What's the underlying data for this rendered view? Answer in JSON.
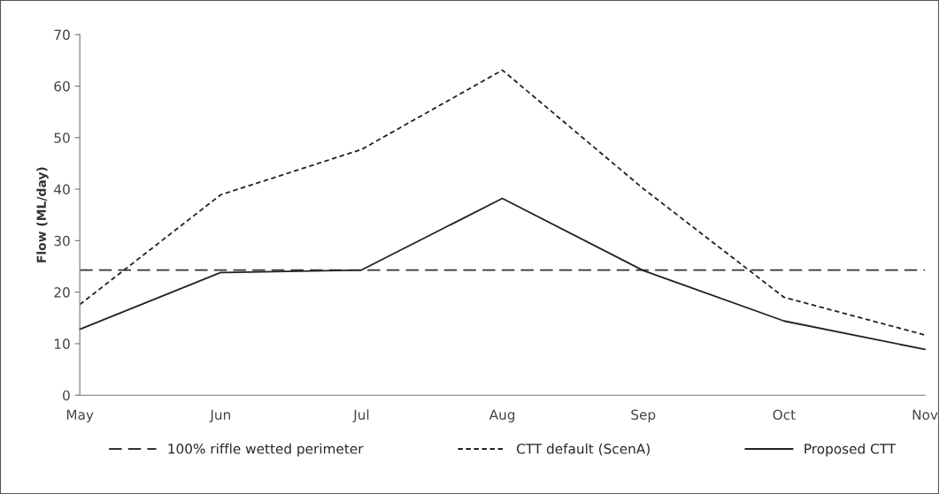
{
  "chart_data": {
    "type": "line",
    "ylabel": "Flow (ML/day)",
    "categories": [
      "May",
      "Jun",
      "Jul",
      "Aug",
      "Sep",
      "Oct",
      "Nov"
    ],
    "series": [
      {
        "name": "100% riffle wetted perimeter",
        "color": "#333333",
        "line_style": "dashed",
        "values": [
          24.3,
          24.3,
          24.3,
          24.3,
          24.3,
          24.3,
          24.3
        ]
      },
      {
        "name": "CTT default (ScenA)",
        "color": "#222222",
        "line_style": "dotted",
        "values": [
          17.6,
          38.9,
          47.7,
          63.1,
          40.1,
          19.0,
          11.7
        ]
      },
      {
        "name": "Proposed CTT",
        "color": "#222222",
        "line_style": "solid",
        "values": [
          12.8,
          23.8,
          24.3,
          38.2,
          24.2,
          14.4,
          8.9
        ]
      }
    ],
    "ylim": [
      0,
      70
    ],
    "yticks": [
      0,
      10,
      20,
      30,
      40,
      50,
      60,
      70
    ],
    "grid": false,
    "legend": "bottom",
    "marker": "none"
  }
}
